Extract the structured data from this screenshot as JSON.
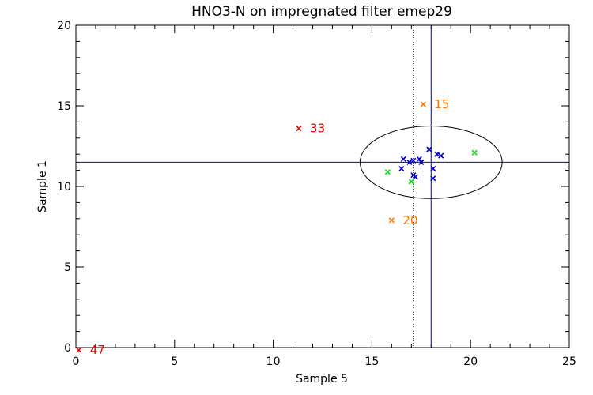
{
  "chart_data": {
    "type": "scatter",
    "title": "HNO3-N on impregnated filter emep29",
    "xlabel": "Sample 5",
    "ylabel": "Sample 1",
    "xlim": [
      0,
      25
    ],
    "ylim": [
      0,
      20
    ],
    "xticks": [
      "0",
      "5",
      "10",
      "15",
      "20",
      "25"
    ],
    "yticks": [
      "0",
      "5",
      "10",
      "15",
      "20"
    ],
    "grid": false,
    "reference_lines": {
      "vertical_solid_x": 18.0,
      "horizontal_solid_y": 11.5,
      "vertical_dotted_x": 17.1
    },
    "ellipse": {
      "center": [
        18.0,
        11.5
      ],
      "half_width_x": 3.6,
      "half_height_y": 2.25,
      "color": "#000000"
    },
    "series": [
      {
        "color": "#0000cc",
        "points": [
          {
            "x": 16.5,
            "y": 11.1
          },
          {
            "x": 16.6,
            "y": 11.7
          },
          {
            "x": 16.9,
            "y": 11.5
          },
          {
            "x": 17.1,
            "y": 11.6
          },
          {
            "x": 17.1,
            "y": 10.7
          },
          {
            "x": 17.2,
            "y": 10.6
          },
          {
            "x": 17.4,
            "y": 11.7
          },
          {
            "x": 17.5,
            "y": 11.5
          },
          {
            "x": 17.9,
            "y": 12.3
          },
          {
            "x": 18.1,
            "y": 11.1
          },
          {
            "x": 18.1,
            "y": 10.5
          },
          {
            "x": 18.3,
            "y": 12.0
          },
          {
            "x": 18.5,
            "y": 11.9
          }
        ]
      },
      {
        "color": "#00dd00",
        "points": [
          {
            "x": 15.8,
            "y": 10.9
          },
          {
            "x": 17.0,
            "y": 10.3
          },
          {
            "x": 20.2,
            "y": 12.1
          }
        ]
      },
      {
        "color": "#ff7700",
        "points": [
          {
            "x": 17.6,
            "y": 15.1,
            "label": "15"
          },
          {
            "x": 16.0,
            "y": 7.9,
            "label": "20"
          }
        ]
      },
      {
        "color": "#ee0000",
        "points": [
          {
            "x": 11.3,
            "y": 13.6,
            "label": "33"
          },
          {
            "x": 0.15,
            "y": -0.15,
            "label": "47"
          }
        ]
      }
    ]
  }
}
